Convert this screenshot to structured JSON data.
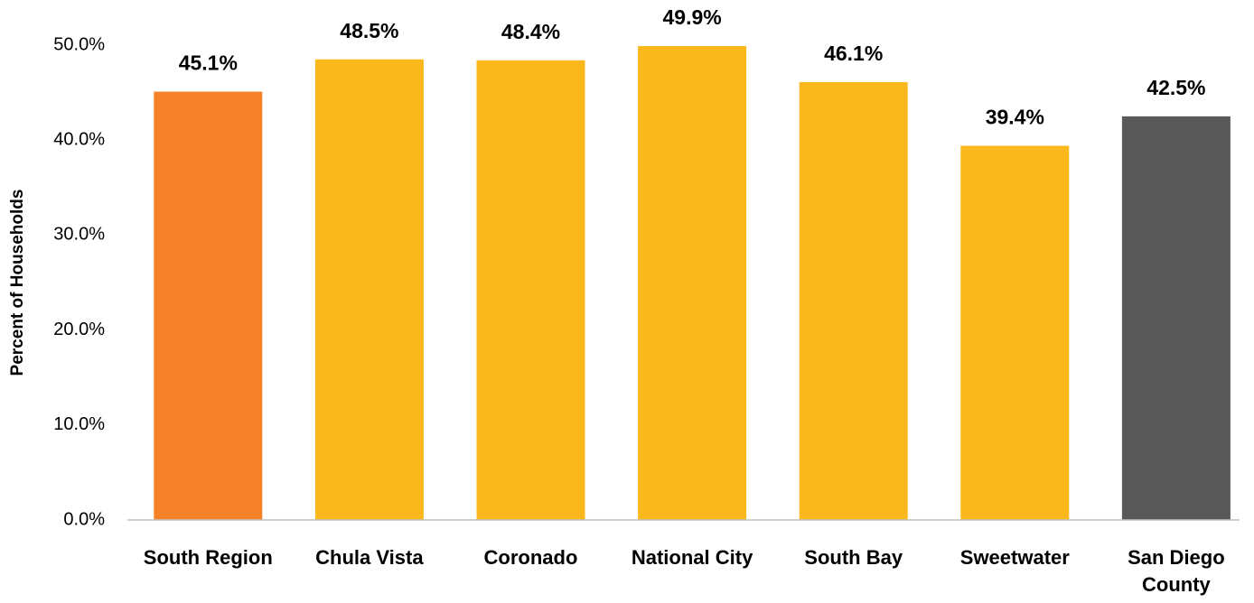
{
  "chart_data": {
    "type": "bar",
    "y_axis_label": "Percent of Households",
    "categories": [
      "South Region",
      "Chula Vista",
      "Coronado",
      "National City",
      "South Bay",
      "Sweetwater",
      "San Diego County"
    ],
    "values": [
      45.1,
      48.5,
      48.4,
      49.9,
      46.1,
      39.4,
      42.5
    ],
    "value_labels": [
      "45.1%",
      "48.5%",
      "48.4%",
      "49.9%",
      "46.1%",
      "39.4%",
      "42.5%"
    ],
    "colors": [
      "#f58229",
      "#fbb81c",
      "#fbb81c",
      "#fbb81c",
      "#fbb81c",
      "#fbb81c",
      "#595959"
    ],
    "ylim": [
      0,
      50
    ],
    "yticks": [
      {
        "value": 0,
        "label": "0.0%"
      },
      {
        "value": 10,
        "label": "10.0%"
      },
      {
        "value": 20,
        "label": "20.0%"
      },
      {
        "value": 30,
        "label": "30.0%"
      },
      {
        "value": 40,
        "label": "40.0%"
      },
      {
        "value": 50,
        "label": "50.0%"
      }
    ],
    "grid": false
  }
}
